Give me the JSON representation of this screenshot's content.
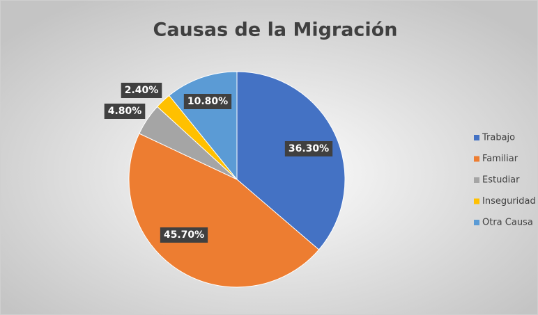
{
  "chart_data": {
    "type": "pie",
    "title": "Causas de la Migración",
    "categories": [
      "Trabajo",
      "Familiar",
      "Estudiar",
      "Inseguridad",
      "Otra Causa"
    ],
    "values": [
      36.3,
      45.7,
      4.8,
      2.4,
      10.8
    ],
    "value_labels": [
      "36.30%",
      "45.70%",
      "4.80%",
      "2.40%",
      "10.80%"
    ],
    "colors": [
      "#4472c4",
      "#ed7d31",
      "#a5a5a5",
      "#ffc000",
      "#5b9bd5"
    ],
    "legend": "right"
  }
}
